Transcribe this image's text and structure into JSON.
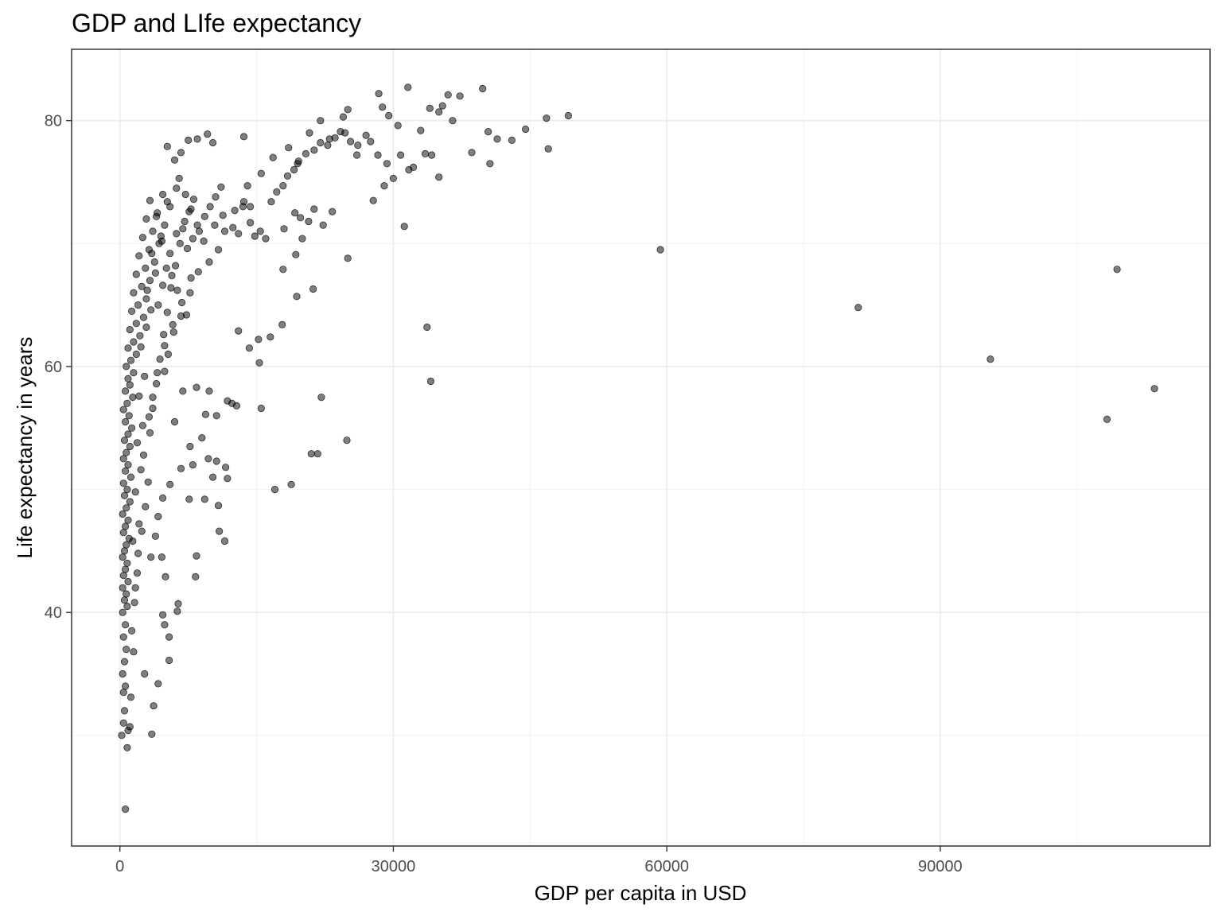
{
  "chart_data": {
    "type": "scatter",
    "title": "GDP and LIfe expectancy",
    "xlabel": "GDP per capita in USD",
    "ylabel": "Life expectancy in years",
    "x_ticks": [
      0,
      30000,
      60000,
      90000
    ],
    "x_tick_labels": [
      "0",
      "30000",
      "60000",
      "90000"
    ],
    "y_ticks": [
      40,
      60,
      80
    ],
    "y_tick_labels": [
      "40",
      "60",
      "80"
    ],
    "xlim": [
      -5300,
      119600
    ],
    "ylim": [
      21.0,
      85.8
    ],
    "grid": true,
    "point_color": "#000000",
    "point_alpha": 0.5,
    "series": [
      {
        "points": [
          [
            59300,
            69.5
          ],
          [
            81000,
            64.8
          ],
          [
            95500,
            60.6
          ],
          [
            108300,
            55.7
          ],
          [
            109400,
            67.9
          ],
          [
            113500,
            58.2
          ],
          [
            33700,
            63.2
          ],
          [
            34100,
            58.8
          ],
          [
            31200,
            71.4
          ],
          [
            25000,
            68.8
          ],
          [
            18800,
            50.4
          ],
          [
            17000,
            50.0
          ],
          [
            21000,
            52.9
          ],
          [
            21700,
            52.9
          ],
          [
            22100,
            57.5
          ],
          [
            24900,
            54.0
          ],
          [
            15500,
            56.6
          ],
          [
            15300,
            60.3
          ],
          [
            15200,
            62.2
          ],
          [
            12300,
            57.0
          ],
          [
            11800,
            57.2
          ],
          [
            10600,
            56.0
          ],
          [
            10600,
            52.3
          ],
          [
            11600,
            51.8
          ],
          [
            11800,
            50.9
          ],
          [
            10800,
            48.7
          ],
          [
            10900,
            46.6
          ],
          [
            11500,
            45.8
          ],
          [
            13000,
            62.9
          ],
          [
            14200,
            61.5
          ],
          [
            16500,
            62.4
          ],
          [
            17800,
            63.4
          ],
          [
            19400,
            65.7
          ],
          [
            21200,
            66.3
          ],
          [
            17900,
            67.9
          ],
          [
            19300,
            69.1
          ],
          [
            8300,
            42.9
          ],
          [
            8400,
            44.6
          ],
          [
            6300,
            40.1
          ],
          [
            6400,
            40.7
          ],
          [
            5400,
            36.1
          ],
          [
            5400,
            38.0
          ],
          [
            4900,
            39.0
          ],
          [
            4700,
            39.8
          ],
          [
            4200,
            34.2
          ],
          [
            3700,
            32.4
          ],
          [
            2700,
            35.0
          ],
          [
            3500,
            30.1
          ],
          [
            600,
            24.0
          ],
          [
            800,
            29.0
          ],
          [
            900,
            30.4
          ],
          [
            1100,
            30.7
          ],
          [
            1200,
            33.1
          ],
          [
            40600,
            76.5
          ],
          [
            38600,
            77.4
          ],
          [
            35000,
            75.4
          ],
          [
            32200,
            76.2
          ],
          [
            40400,
            79.1
          ],
          [
            41400,
            78.5
          ],
          [
            43000,
            78.4
          ],
          [
            44500,
            79.3
          ],
          [
            46800,
            80.2
          ],
          [
            47000,
            77.7
          ],
          [
            49200,
            80.4
          ],
          [
            39800,
            82.6
          ],
          [
            37300,
            82.0
          ],
          [
            36000,
            82.1
          ],
          [
            31600,
            82.7
          ],
          [
            28400,
            82.2
          ],
          [
            28800,
            81.1
          ],
          [
            29500,
            80.4
          ],
          [
            25000,
            80.9
          ],
          [
            24500,
            80.3
          ],
          [
            27000,
            78.8
          ],
          [
            26000,
            77.2
          ],
          [
            30500,
            79.6
          ],
          [
            33000,
            79.2
          ],
          [
            35000,
            80.7
          ],
          [
            36500,
            80.0
          ],
          [
            34000,
            81.0
          ],
          [
            35400,
            81.2
          ],
          [
            27800,
            73.5
          ],
          [
            29000,
            74.7
          ],
          [
            30000,
            75.3
          ],
          [
            22000,
            80.0
          ],
          [
            23000,
            78.5
          ],
          [
            20800,
            79.0
          ],
          [
            18500,
            77.8
          ],
          [
            19500,
            76.5
          ],
          [
            16800,
            77.0
          ],
          [
            15500,
            75.7
          ],
          [
            14000,
            74.7
          ],
          [
            13500,
            73.0
          ],
          [
            12600,
            72.7
          ],
          [
            11500,
            71.0
          ],
          [
            10800,
            69.5
          ],
          [
            9800,
            68.5
          ],
          [
            9200,
            70.2
          ],
          [
            8500,
            71.5
          ],
          [
            7800,
            72.8
          ],
          [
            7200,
            74.0
          ],
          [
            6500,
            75.3
          ],
          [
            6000,
            76.8
          ],
          [
            5200,
            77.9
          ],
          [
            13600,
            78.7
          ],
          [
            10200,
            78.2
          ],
          [
            9600,
            78.9
          ],
          [
            8500,
            78.5
          ],
          [
            7500,
            78.4
          ],
          [
            6700,
            77.4
          ],
          [
            7800,
            67.2
          ],
          [
            8600,
            67.7
          ],
          [
            7700,
            66.0
          ],
          [
            6700,
            64.1
          ],
          [
            5800,
            63.4
          ],
          [
            4900,
            61.7
          ],
          [
            4100,
            59.5
          ],
          [
            3600,
            57.5
          ],
          [
            3200,
            55.9
          ],
          [
            6000,
            55.5
          ],
          [
            7700,
            53.5
          ],
          [
            8000,
            52.0
          ],
          [
            6700,
            51.7
          ],
          [
            5500,
            50.4
          ],
          [
            4700,
            49.3
          ],
          [
            4200,
            47.8
          ],
          [
            3900,
            46.2
          ],
          [
            3400,
            44.5
          ],
          [
            4600,
            44.5
          ],
          [
            5000,
            42.9
          ],
          [
            6900,
            58.0
          ],
          [
            8400,
            58.3
          ],
          [
            9800,
            58.0
          ],
          [
            9400,
            56.1
          ],
          [
            9000,
            54.2
          ],
          [
            9700,
            52.5
          ],
          [
            10200,
            51.0
          ],
          [
            9300,
            49.2
          ],
          [
            7600,
            49.2
          ],
          [
            12800,
            56.8
          ],
          [
            13600,
            73.4
          ],
          [
            14300,
            73.0
          ],
          [
            15400,
            71.0
          ],
          [
            16000,
            70.4
          ],
          [
            16600,
            73.4
          ],
          [
            17200,
            74.2
          ],
          [
            17900,
            74.7
          ],
          [
            18400,
            75.5
          ],
          [
            19100,
            76.0
          ],
          [
            19600,
            76.7
          ],
          [
            20400,
            77.3
          ],
          [
            21300,
            77.6
          ],
          [
            22000,
            78.2
          ],
          [
            22800,
            78.0
          ],
          [
            23600,
            78.6
          ],
          [
            24200,
            79.1
          ],
          [
            24700,
            79.0
          ],
          [
            25300,
            78.3
          ],
          [
            26100,
            78.0
          ],
          [
            27500,
            78.3
          ],
          [
            28300,
            77.2
          ],
          [
            29300,
            76.5
          ],
          [
            30800,
            77.2
          ],
          [
            31700,
            76.0
          ],
          [
            33500,
            77.3
          ],
          [
            34200,
            77.2
          ],
          [
            18000,
            71.2
          ],
          [
            19200,
            72.5
          ],
          [
            19800,
            72.1
          ],
          [
            20700,
            71.8
          ],
          [
            21300,
            72.8
          ],
          [
            22300,
            71.5
          ],
          [
            23300,
            72.6
          ],
          [
            20000,
            70.4
          ],
          [
            14300,
            71.7
          ],
          [
            14800,
            70.6
          ],
          [
            13000,
            70.8
          ],
          [
            12400,
            71.3
          ],
          [
            11300,
            72.3
          ],
          [
            10400,
            71.5
          ]
        ],
        "dense_cluster_points": [
          [
            200,
            30.0
          ],
          [
            400,
            31.0
          ],
          [
            500,
            32.0
          ],
          [
            400,
            33.5
          ],
          [
            600,
            34.0
          ],
          [
            300,
            35.0
          ],
          [
            500,
            36.0
          ],
          [
            700,
            37.0
          ],
          [
            400,
            38.0
          ],
          [
            600,
            39.0
          ],
          [
            300,
            40.0
          ],
          [
            800,
            40.5
          ],
          [
            500,
            41.0
          ],
          [
            700,
            41.5
          ],
          [
            300,
            42.0
          ],
          [
            900,
            42.5
          ],
          [
            400,
            43.0
          ],
          [
            600,
            43.5
          ],
          [
            800,
            44.0
          ],
          [
            300,
            44.5
          ],
          [
            500,
            45.0
          ],
          [
            700,
            45.5
          ],
          [
            1000,
            46.0
          ],
          [
            400,
            46.5
          ],
          [
            600,
            47.0
          ],
          [
            900,
            47.5
          ],
          [
            300,
            48.0
          ],
          [
            700,
            48.5
          ],
          [
            1100,
            49.0
          ],
          [
            500,
            49.5
          ],
          [
            800,
            50.0
          ],
          [
            400,
            50.5
          ],
          [
            1200,
            51.0
          ],
          [
            600,
            51.5
          ],
          [
            900,
            52.0
          ],
          [
            400,
            52.5
          ],
          [
            700,
            53.0
          ],
          [
            1100,
            53.5
          ],
          [
            500,
            54.0
          ],
          [
            900,
            54.5
          ],
          [
            1300,
            55.0
          ],
          [
            600,
            55.5
          ],
          [
            1000,
            56.0
          ],
          [
            400,
            56.5
          ],
          [
            800,
            57.0
          ],
          [
            1400,
            57.5
          ],
          [
            600,
            58.0
          ],
          [
            1100,
            58.5
          ],
          [
            900,
            59.0
          ],
          [
            1500,
            59.5
          ],
          [
            700,
            60.0
          ],
          [
            1200,
            60.5
          ],
          [
            1800,
            61.0
          ],
          [
            900,
            61.5
          ],
          [
            1500,
            62.0
          ],
          [
            2200,
            62.5
          ],
          [
            1100,
            63.0
          ],
          [
            1800,
            63.5
          ],
          [
            2600,
            64.0
          ],
          [
            1300,
            64.5
          ],
          [
            2000,
            65.0
          ],
          [
            2900,
            65.5
          ],
          [
            1500,
            66.0
          ],
          [
            2400,
            66.5
          ],
          [
            3300,
            67.0
          ],
          [
            1800,
            67.5
          ],
          [
            2800,
            68.0
          ],
          [
            3800,
            68.5
          ],
          [
            2100,
            69.0
          ],
          [
            3200,
            69.5
          ],
          [
            4300,
            70.0
          ],
          [
            2500,
            70.5
          ],
          [
            3600,
            71.0
          ],
          [
            4900,
            71.5
          ],
          [
            2900,
            72.0
          ],
          [
            4100,
            72.5
          ],
          [
            5500,
            73.0
          ],
          [
            3300,
            73.5
          ],
          [
            4700,
            74.0
          ],
          [
            6200,
            74.5
          ],
          [
            1600,
            40.8
          ],
          [
            1900,
            43.2
          ],
          [
            1400,
            45.8
          ],
          [
            2100,
            47.2
          ],
          [
            1700,
            49.8
          ],
          [
            2300,
            51.6
          ],
          [
            1900,
            53.8
          ],
          [
            2500,
            55.2
          ],
          [
            2100,
            57.6
          ],
          [
            2700,
            59.2
          ],
          [
            2300,
            61.6
          ],
          [
            2900,
            63.2
          ],
          [
            3400,
            64.6
          ],
          [
            3000,
            66.2
          ],
          [
            3900,
            67.6
          ],
          [
            3500,
            69.2
          ],
          [
            4500,
            70.6
          ],
          [
            4000,
            72.2
          ],
          [
            5200,
            73.4
          ],
          [
            4600,
            70.2
          ],
          [
            1300,
            38.5
          ],
          [
            1500,
            36.8
          ],
          [
            1700,
            42.0
          ],
          [
            2000,
            44.8
          ],
          [
            2400,
            46.6
          ],
          [
            2800,
            48.6
          ],
          [
            3100,
            50.6
          ],
          [
            2600,
            52.8
          ],
          [
            3300,
            54.6
          ],
          [
            3600,
            56.6
          ],
          [
            4000,
            58.6
          ],
          [
            4400,
            60.6
          ],
          [
            4800,
            62.6
          ],
          [
            5200,
            64.4
          ],
          [
            5600,
            66.4
          ],
          [
            6100,
            68.2
          ],
          [
            6600,
            70.0
          ],
          [
            7100,
            71.8
          ],
          [
            7600,
            72.6
          ],
          [
            8100,
            73.6
          ],
          [
            5500,
            69.2
          ],
          [
            6200,
            70.8
          ],
          [
            6900,
            71.2
          ],
          [
            7400,
            69.6
          ],
          [
            8000,
            70.4
          ],
          [
            8700,
            71.0
          ],
          [
            9300,
            72.2
          ],
          [
            9900,
            73.0
          ],
          [
            10500,
            73.8
          ],
          [
            11100,
            74.6
          ],
          [
            4200,
            65.0
          ],
          [
            4700,
            66.6
          ],
          [
            5100,
            68.0
          ],
          [
            5700,
            67.4
          ],
          [
            6300,
            66.2
          ],
          [
            6800,
            65.2
          ],
          [
            7300,
            64.2
          ],
          [
            5900,
            62.8
          ],
          [
            5300,
            61.0
          ],
          [
            4900,
            59.6
          ]
        ]
      }
    ]
  }
}
